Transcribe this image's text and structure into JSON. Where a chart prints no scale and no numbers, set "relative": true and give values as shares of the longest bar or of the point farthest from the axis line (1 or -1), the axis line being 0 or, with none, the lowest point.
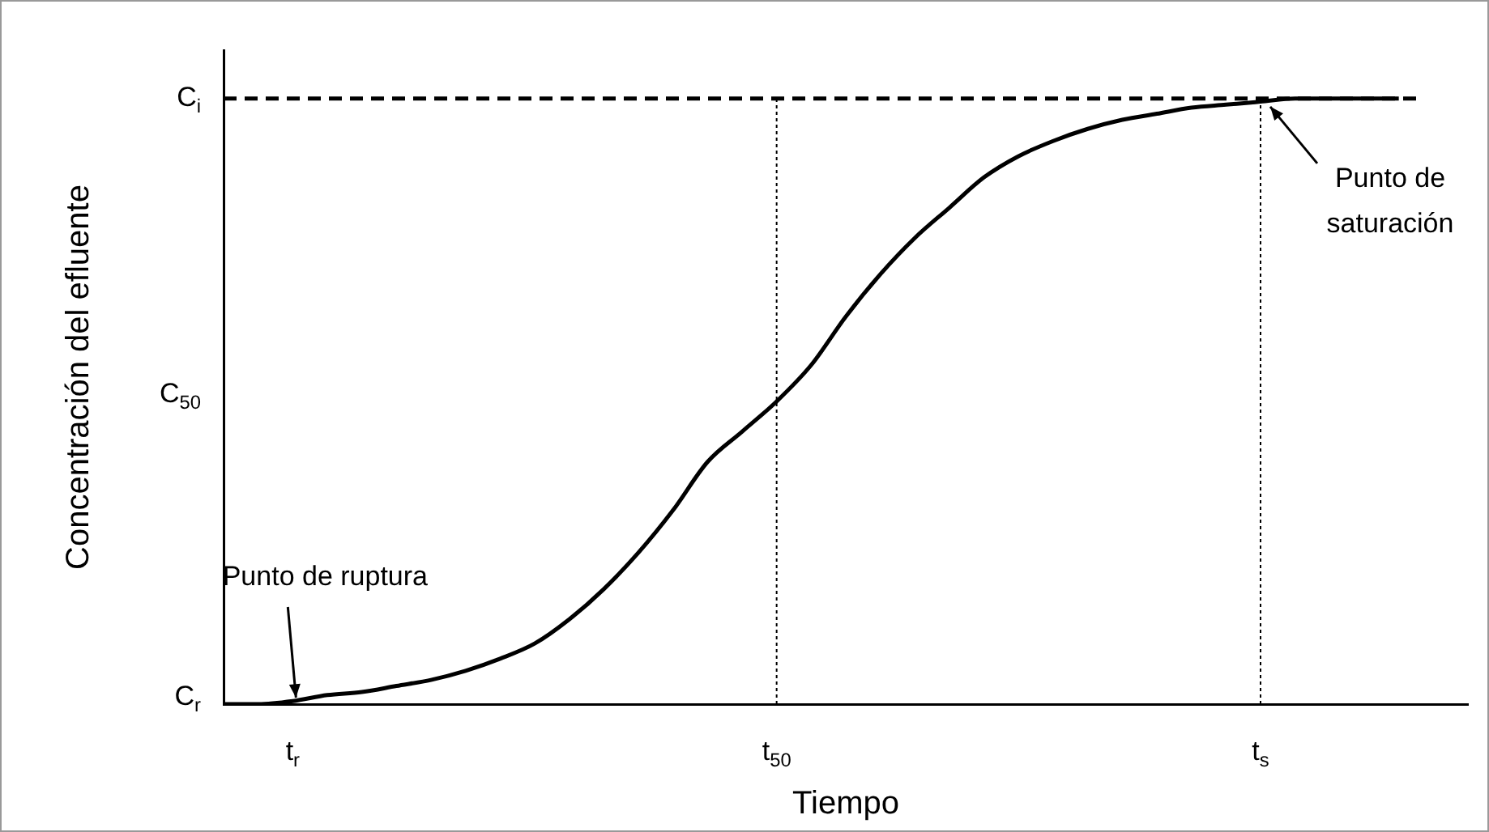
{
  "chart_data": {
    "type": "line",
    "relative": true,
    "xlabel": "Tiempo",
    "ylabel": "Concentración del efluente",
    "categories": [
      null,
      null,
      "t$_{r}$",
      null,
      null,
      null,
      null,
      null,
      null,
      null,
      null,
      null,
      null,
      null,
      null,
      null,
      "t$_{50}$",
      null,
      null,
      null,
      null,
      null,
      null,
      null,
      null,
      null,
      null,
      null,
      null,
      null,
      "t$_{s}$",
      null,
      null,
      null,
      null,
      null,
      null
    ],
    "series": [
      {
        "color": "#000000",
        "values": [
          0,
          0,
          0.005,
          0.015,
          0.02,
          0.03,
          0.04,
          0.055,
          0.075,
          0.1,
          0.14,
          0.19,
          0.25,
          0.32,
          0.4,
          0.45,
          0.5,
          0.56,
          0.64,
          0.71,
          0.77,
          0.82,
          0.87,
          0.905,
          0.93,
          0.95,
          0.965,
          0.975,
          0.985,
          0.99,
          0.995,
          1,
          1,
          1,
          1,
          null,
          null
        ]
      }
    ],
    "marker": "none",
    "grid": false,
    "legend": false,
    "ref_lines": [
      {
        "axis": "y",
        "value": 1,
        "label": "C$_{i}$",
        "line_style": "dashed",
        "color": "#000000"
      },
      {
        "axis": "x",
        "value": "t$_{50}$",
        "label": null,
        "line_style": "dotted",
        "color": "#000000"
      },
      {
        "axis": "x",
        "value": "t$_{s}$",
        "label": null,
        "line_style": "dotted",
        "color": "#000000"
      }
    ],
    "annotations": [
      "C$_{r}$",
      "C$_{50}$",
      {
        "text": "Punto de ruptura",
        "x": "t$_{r}$",
        "y": 0
      },
      {
        "text": "Punto de saturación",
        "x": "t$_{s}$",
        "y": 1
      }
    ]
  }
}
